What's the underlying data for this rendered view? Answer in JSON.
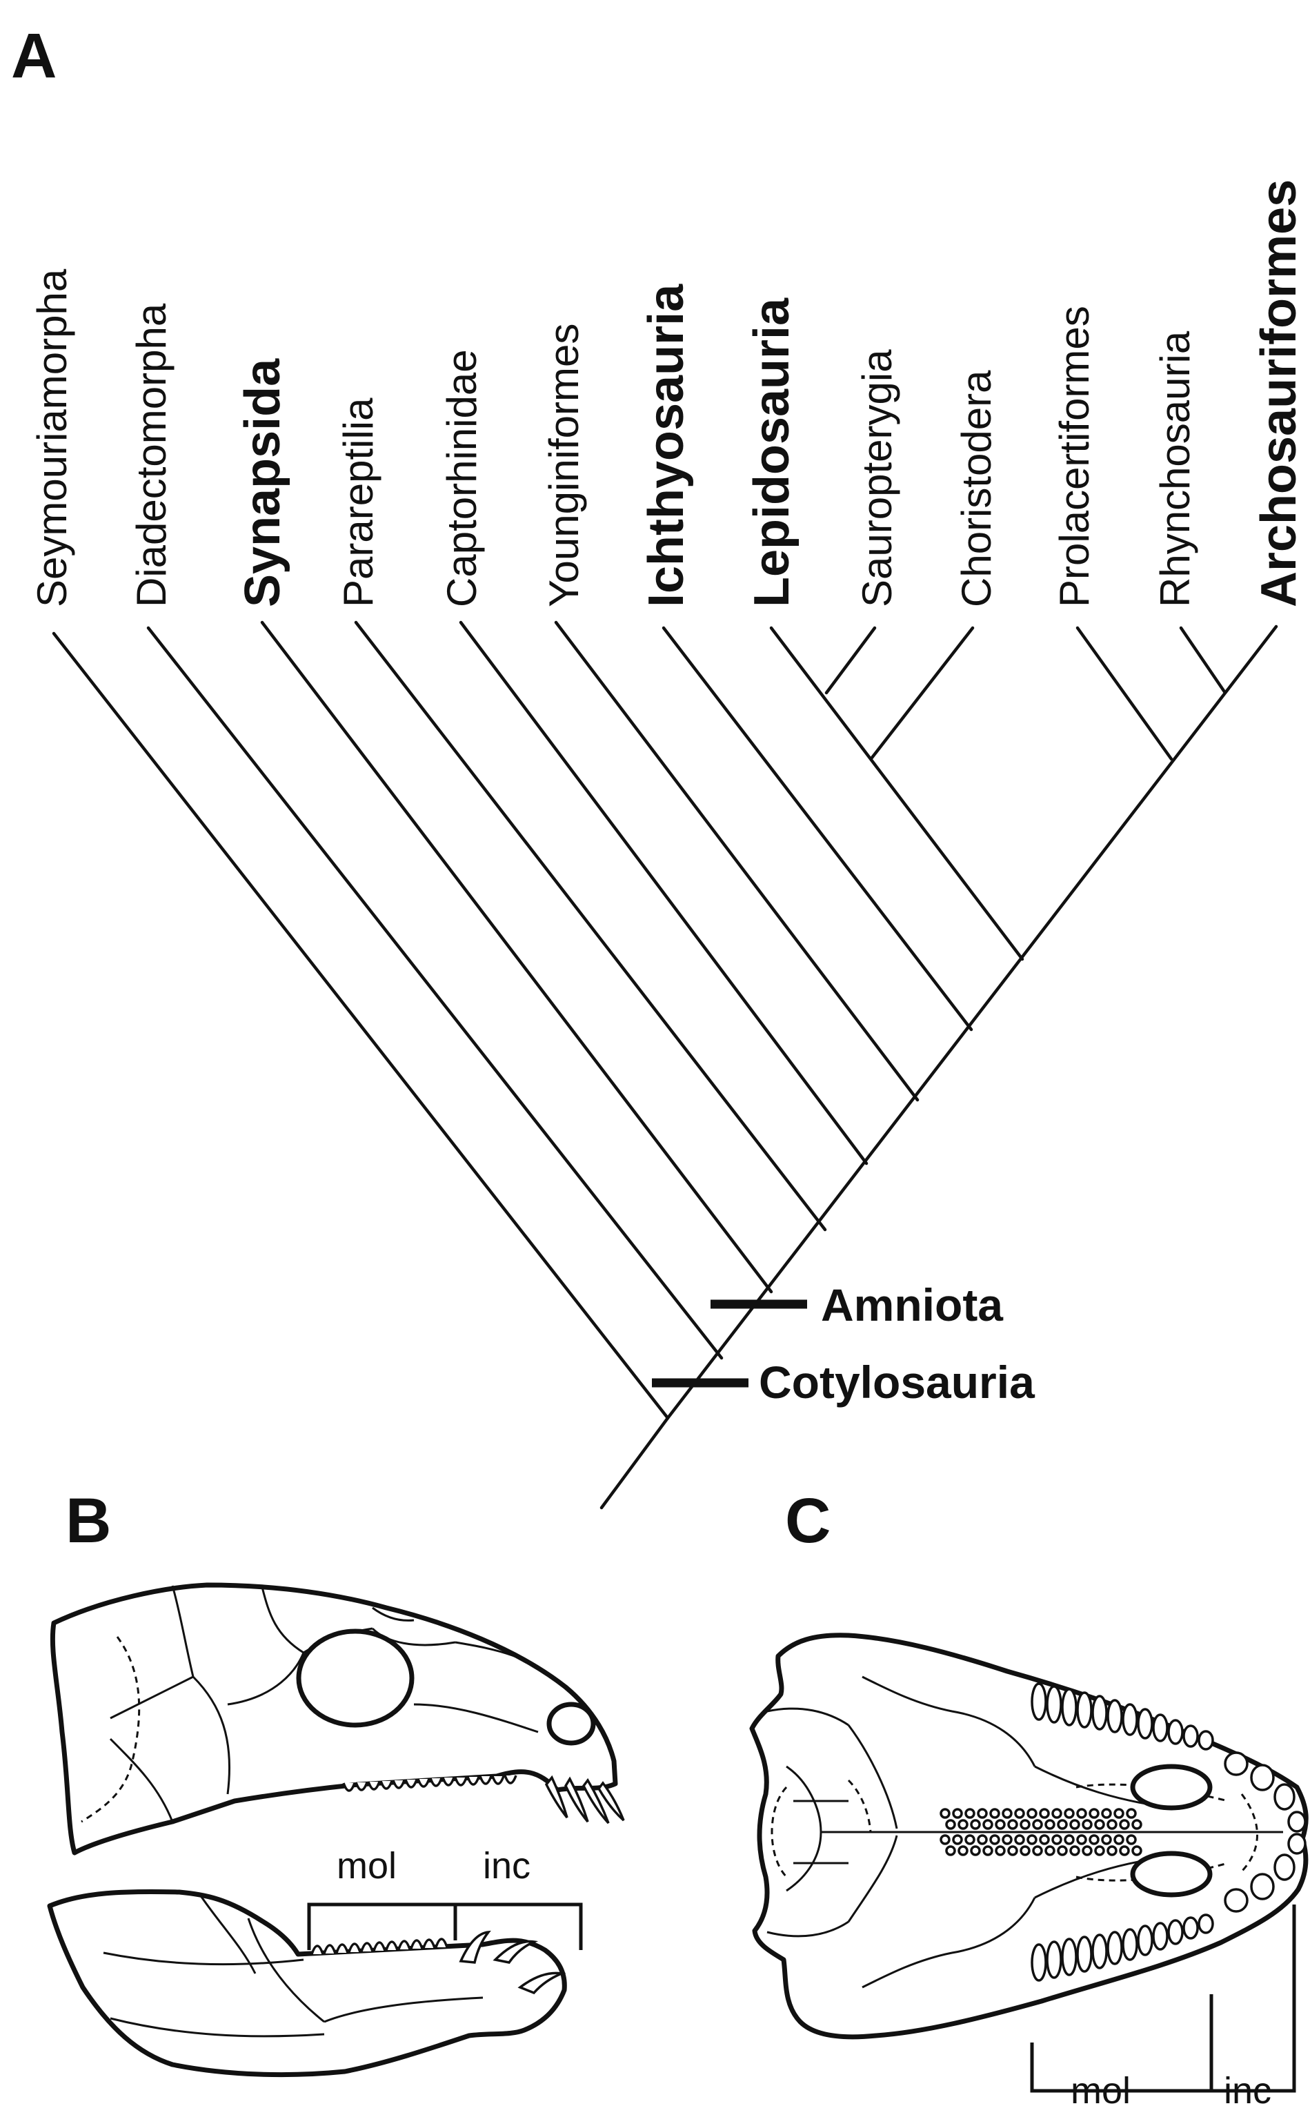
{
  "panels": {
    "a": "A",
    "b": "B",
    "c": "C"
  },
  "cladogram": {
    "taxa": [
      {
        "name": "Seymouriamorpha",
        "bold": false
      },
      {
        "name": "Diadectomorpha",
        "bold": false
      },
      {
        "name": "Synapsida",
        "bold": true
      },
      {
        "name": "Parareptilia",
        "bold": false
      },
      {
        "name": "Captorhinidae",
        "bold": false
      },
      {
        "name": "Younginiformes",
        "bold": false
      },
      {
        "name": "Ichthyosauria",
        "bold": true
      },
      {
        "name": "Lepidosauria",
        "bold": true
      },
      {
        "name": "Sauropterygia",
        "bold": false
      },
      {
        "name": "Choristodera",
        "bold": false
      },
      {
        "name": "Prolacertiformes",
        "bold": false
      },
      {
        "name": "Rhynchosauria",
        "bold": false
      },
      {
        "name": "Archosauriformes",
        "bold": true
      }
    ],
    "nodes": {
      "amniota": "Amniota",
      "cotylosauria": "Cotylosauria"
    }
  },
  "skull_lateral": {
    "mol": "mol",
    "inc": "inc"
  },
  "skull_palatal": {
    "mol": "mol",
    "inc": "inc"
  }
}
